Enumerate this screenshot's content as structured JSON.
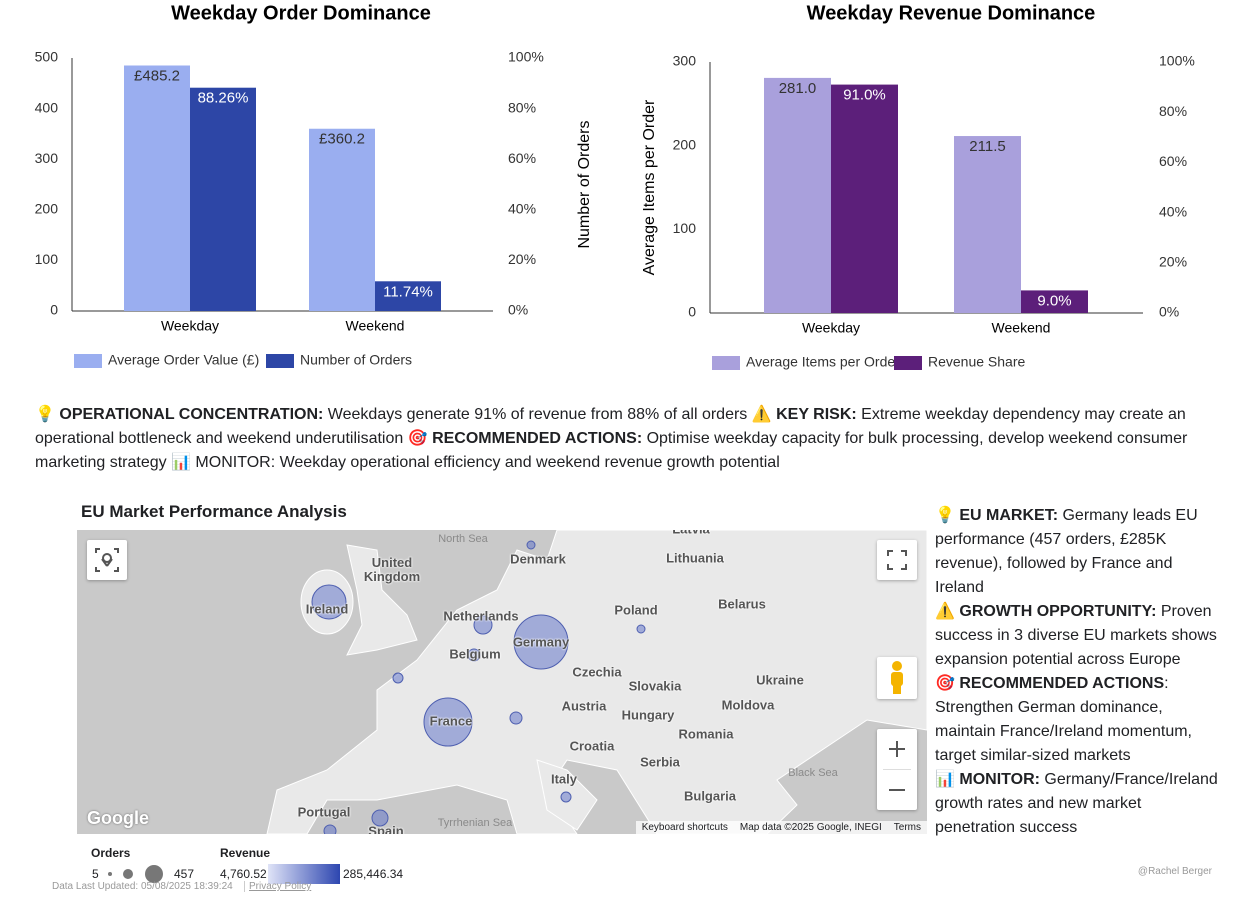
{
  "chart_data": [
    {
      "type": "bar",
      "title": "Weekday Order Dominance",
      "categories": [
        "Weekday",
        "Weekend"
      ],
      "series": [
        {
          "name": "Average Order Value (£)",
          "color": "#9aaef0",
          "values": [
            485.2,
            360.2
          ],
          "value_labels": [
            "£485.2",
            "£360.2"
          ]
        },
        {
          "name": "Number of Orders",
          "color": "#2d46a6",
          "axis": "y2",
          "values": [
            88.26,
            11.74
          ],
          "value_labels": [
            "88.26%",
            "11.74%"
          ]
        }
      ],
      "ylim": [
        0,
        500
      ],
      "yticks": [
        0,
        100,
        200,
        300,
        400,
        500
      ],
      "y2label": "Number of Orders",
      "y2lim": [
        0,
        100
      ],
      "y2ticks": [
        {
          "value": 0,
          "label": "0%"
        },
        {
          "value": 20,
          "label": "20%"
        },
        {
          "value": 40,
          "label": "40%"
        },
        {
          "value": 60,
          "label": "60%"
        },
        {
          "value": 80,
          "label": "80%"
        },
        {
          "value": 100,
          "label": "100%"
        }
      ],
      "grid": false,
      "legend": "bottom-left"
    },
    {
      "type": "bar",
      "title": "Weekday Revenue Dominance",
      "categories": [
        "Weekday",
        "Weekend"
      ],
      "series": [
        {
          "name": "Average Items per Order",
          "color": "#a9a0dc",
          "values": [
            281.0,
            211.5
          ],
          "value_labels": [
            "281.0",
            "211.5"
          ]
        },
        {
          "name": "Revenue Share",
          "color": "#5c1f7a",
          "axis": "y2",
          "values": [
            91.0,
            9.0
          ],
          "value_labels": [
            "91.0%",
            "9.0%"
          ]
        }
      ],
      "ylabel": "Average Items per Order",
      "ylim": [
        0,
        300
      ],
      "yticks": [
        0,
        100,
        200,
        300
      ],
      "y2lim": [
        0,
        100
      ],
      "y2ticks": [
        {
          "value": 0,
          "label": "0%"
        },
        {
          "value": 20,
          "label": "20%"
        },
        {
          "value": 40,
          "label": "40%"
        },
        {
          "value": 60,
          "label": "60%"
        },
        {
          "value": 80,
          "label": "80%"
        },
        {
          "value": 100,
          "label": "100%"
        }
      ],
      "grid": false,
      "legend": "bottom-left"
    }
  ],
  "insight": {
    "segments": [
      {
        "text": "💡 OPERATIONAL CONCENTRATION:",
        "bold": true
      },
      {
        "text": " Weekdays generate 91% of revenue from 88% of all orders ",
        "bold": false
      },
      {
        "text": "⚠️ KEY RISK:",
        "bold": true
      },
      {
        "text": " Extreme weekday dependency may create an operational bottleneck and weekend underutilisation ",
        "bold": false
      },
      {
        "text": "🎯 RECOMMENDED ACTIONS:",
        "bold": true
      },
      {
        "text": " Optimise weekday capacity for bulk processing, develop weekend consumer marketing strategy ",
        "bold": false
      },
      {
        "text": "📊 MONITOR: Weekday operational efficiency and weekend revenue growth potential",
        "bold": false
      }
    ]
  },
  "map": {
    "title": "EU Market Performance Analysis",
    "labels": [
      "North Sea",
      "Latvia",
      "Denmark",
      "Lithuania",
      "United Kingdom",
      "Ireland",
      "Netherlands",
      "Poland",
      "Belarus",
      "Germany",
      "Belgium",
      "Czechia",
      "Slovakia",
      "Ukraine",
      "Austria",
      "Moldova",
      "France",
      "Hungary",
      "Romania",
      "Croatia",
      "Serbia",
      "Black Sea",
      "Italy",
      "Bulgaria",
      "Portugal",
      "Spain",
      "Tyrrhenian Sea"
    ],
    "logo": "Google",
    "attribution": [
      "Keyboard shortcuts",
      "Map data ©2025 Google, INEGI",
      "Terms"
    ]
  },
  "map_legend": {
    "orders_title": "Orders",
    "orders_min": 5,
    "orders_max": 457,
    "revenue_title": "Revenue",
    "revenue_min": "4,760.52",
    "revenue_max": "285,446.34"
  },
  "side_insight": {
    "paragraphs": [
      [
        {
          "text": "💡 EU MARKET:",
          "bold": true
        },
        {
          "text": " Germany leads EU performance (457 orders, £285K revenue), followed by France and Ireland",
          "bold": false
        }
      ],
      [
        {
          "text": "⚠️ GROWTH OPPORTUNITY:",
          "bold": true
        },
        {
          "text": " Proven success in 3 diverse EU markets shows expansion potential across Europe",
          "bold": false
        }
      ],
      [
        {
          "text": "🎯 RECOMMENDED ACTIONS",
          "bold": true
        },
        {
          "text": ": Strengthen German dominance, maintain France/Ireland momentum, target similar-sized markets",
          "bold": false
        }
      ],
      [
        {
          "text": "📊 MONITOR:",
          "bold": true
        },
        {
          "text": " Germany/France/Ireland growth rates and new market penetration success",
          "bold": false
        }
      ]
    ]
  },
  "footer": {
    "updated": "Data Last Updated: 05/08/2025 18:39:24",
    "privacy": "Privacy Policy",
    "author": "@Rachel Berger"
  }
}
